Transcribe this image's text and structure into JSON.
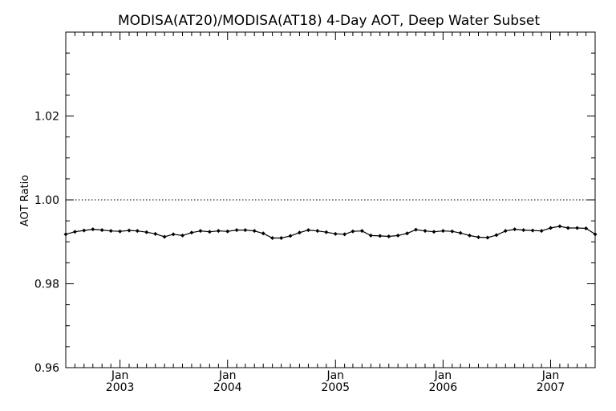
{
  "chart_data": {
    "type": "line",
    "title": "MODISA(AT20)/MODISA(AT18) 4-Day AOT, Deep Water Subset",
    "xlabel": "",
    "ylabel": "AOT Ratio",
    "ylim": [
      0.96,
      1.04
    ],
    "xlim": [
      "2002-07-01",
      "2007-06-01"
    ],
    "y_ticks": [
      "0.96",
      "0.98",
      "1.00",
      "1.02"
    ],
    "x_ticks": [
      {
        "date": "2003-01-01",
        "month": "Jan",
        "year": "2003"
      },
      {
        "date": "2004-01-01",
        "month": "Jan",
        "year": "2004"
      },
      {
        "date": "2005-01-01",
        "month": "Jan",
        "year": "2005"
      },
      {
        "date": "2006-01-01",
        "month": "Jan",
        "year": "2006"
      },
      {
        "date": "2007-01-01",
        "month": "Jan",
        "year": "2007"
      }
    ],
    "reference_line": {
      "y": 1.0,
      "style": "dotted"
    },
    "series": [
      {
        "marker": "diamond",
        "x": [
          "2002-07-01",
          "2002-08-01",
          "2002-09-01",
          "2002-10-01",
          "2002-11-01",
          "2002-12-01",
          "2003-01-01",
          "2003-02-01",
          "2003-03-01",
          "2003-04-01",
          "2003-05-01",
          "2003-06-01",
          "2003-07-01",
          "2003-08-01",
          "2003-09-01",
          "2003-10-01",
          "2003-11-01",
          "2003-12-01",
          "2004-01-01",
          "2004-02-01",
          "2004-03-01",
          "2004-04-01",
          "2004-05-01",
          "2004-06-01",
          "2004-07-01",
          "2004-08-01",
          "2004-09-01",
          "2004-10-01",
          "2004-11-01",
          "2004-12-01",
          "2005-01-01",
          "2005-02-01",
          "2005-03-01",
          "2005-04-01",
          "2005-05-01",
          "2005-06-01",
          "2005-07-01",
          "2005-08-01",
          "2005-09-01",
          "2005-10-01",
          "2005-11-01",
          "2005-12-01",
          "2006-01-01",
          "2006-02-01",
          "2006-03-01",
          "2006-04-01",
          "2006-05-01",
          "2006-06-01",
          "2006-07-01",
          "2006-08-01",
          "2006-09-01",
          "2006-10-01",
          "2006-11-01",
          "2006-12-01",
          "2007-01-01",
          "2007-02-01",
          "2007-03-01",
          "2007-04-01",
          "2007-05-01",
          "2007-06-01"
        ],
        "values": [
          0.9918,
          0.9924,
          0.9927,
          0.993,
          0.9928,
          0.9926,
          0.9925,
          0.9927,
          0.9926,
          0.9923,
          0.9919,
          0.9912,
          0.9918,
          0.9915,
          0.9922,
          0.9926,
          0.9924,
          0.9926,
          0.9925,
          0.9928,
          0.9928,
          0.9926,
          0.992,
          0.9909,
          0.9909,
          0.9914,
          0.9922,
          0.9928,
          0.9926,
          0.9923,
          0.9919,
          0.9918,
          0.9925,
          0.9926,
          0.9915,
          0.9914,
          0.9913,
          0.9915,
          0.992,
          0.9929,
          0.9926,
          0.9924,
          0.9926,
          0.9925,
          0.9921,
          0.9915,
          0.9911,
          0.991,
          0.9916,
          0.9926,
          0.993,
          0.9928,
          0.9927,
          0.9926,
          0.9933,
          0.9937,
          0.9933,
          0.9933,
          0.9932,
          0.9918
        ]
      }
    ]
  }
}
